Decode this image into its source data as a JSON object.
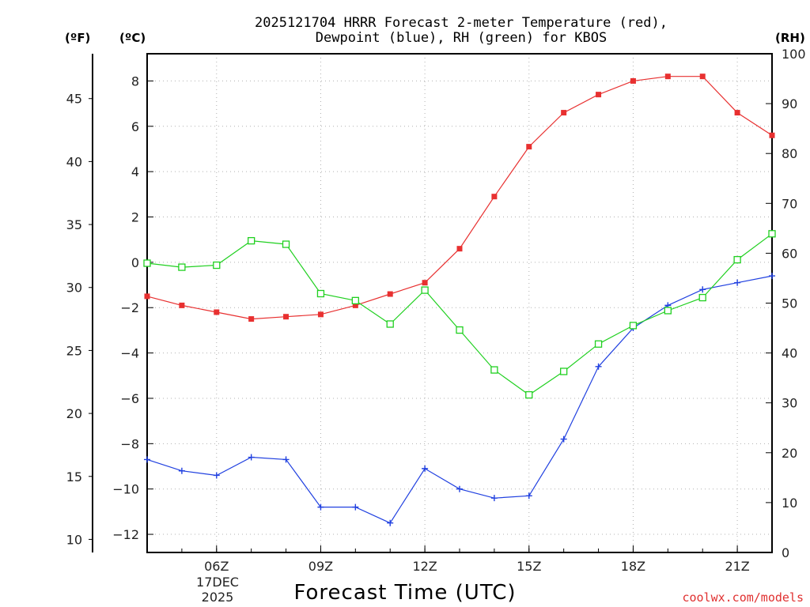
{
  "title_line1": "2025121704 HRRR Forecast 2-meter Temperature (red),",
  "title_line2": "Dewpoint (blue), RH (green) for KBOS",
  "unit_f": "(ºF)",
  "unit_c": "(ºC)",
  "unit_rh": "(RH)",
  "date_line1": "17DEC",
  "date_line2": "2025",
  "credit": "coolwx.com/models",
  "chart_data": {
    "type": "line",
    "title": "2025121704 HRRR Forecast 2-meter Temperature (red), Dewpoint (blue), RH (green) for KBOS",
    "xlabel": "Forecast Time (UTC)",
    "x_hours": [
      4,
      5,
      6,
      7,
      8,
      9,
      10,
      11,
      12,
      13,
      14,
      15,
      16,
      17,
      18,
      19,
      20,
      21,
      22
    ],
    "x_tick_hours": [
      6,
      9,
      12,
      15,
      18,
      21
    ],
    "x_tick_labels": [
      "06Z",
      "09Z",
      "12Z",
      "15Z",
      "18Z",
      "21Z"
    ],
    "xlim": [
      4,
      22
    ],
    "axes": {
      "celsius": {
        "ylim": [
          -12.8,
          9.2
        ],
        "ticks": [
          8,
          6,
          4,
          2,
          0,
          -2,
          -4,
          -6,
          -8,
          -10,
          -12
        ],
        "tick_labels": [
          "8",
          "6",
          "4",
          "2",
          "0",
          "−2",
          "−4",
          "−6",
          "−8",
          "−10",
          "−12"
        ]
      },
      "fahrenheit": {
        "ticks": [
          45,
          40,
          35,
          30,
          25,
          20,
          15,
          10
        ],
        "tick_labels": [
          "45",
          "40",
          "35",
          "30",
          "25",
          "20",
          "15",
          "10"
        ]
      },
      "rh": {
        "ylim": [
          0,
          100
        ],
        "ticks": [
          100,
          90,
          80,
          70,
          60,
          50,
          40,
          30,
          20,
          10,
          0
        ],
        "tick_labels": [
          "100",
          "90",
          "80",
          "70",
          "60",
          "50",
          "40",
          "30",
          "20",
          "10",
          "0"
        ]
      }
    },
    "series": [
      {
        "name": "Temperature (°C)",
        "color": "#e83030",
        "marker": "filled-square",
        "axis": "celsius",
        "values": [
          -1.5,
          -1.9,
          -2.2,
          -2.5,
          -2.4,
          -2.3,
          -1.9,
          -1.4,
          -0.9,
          0.6,
          2.9,
          5.1,
          6.6,
          7.4,
          8.0,
          8.2,
          8.2,
          6.6,
          5.6
        ]
      },
      {
        "name": "Dewpoint (°C)",
        "color": "#2040e0",
        "marker": "plus",
        "axis": "celsius",
        "values": [
          -8.7,
          -9.2,
          -9.4,
          -8.6,
          -8.7,
          -10.8,
          -10.8,
          -11.5,
          -9.1,
          -10.0,
          -10.4,
          -10.3,
          -7.8,
          -4.6,
          -2.9,
          -1.9,
          -1.2,
          -0.9,
          -0.6
        ]
      },
      {
        "name": "RH (%)",
        "color": "#20d020",
        "marker": "open-square",
        "axis": "rh",
        "values": [
          58,
          57.2,
          57.6,
          62.5,
          61.8,
          51.9,
          50.5,
          45.8,
          52.6,
          44.6,
          36.6,
          31.6,
          36.3,
          41.8,
          45.5,
          48.5,
          51.1,
          58.7,
          63.9
        ]
      }
    ]
  }
}
